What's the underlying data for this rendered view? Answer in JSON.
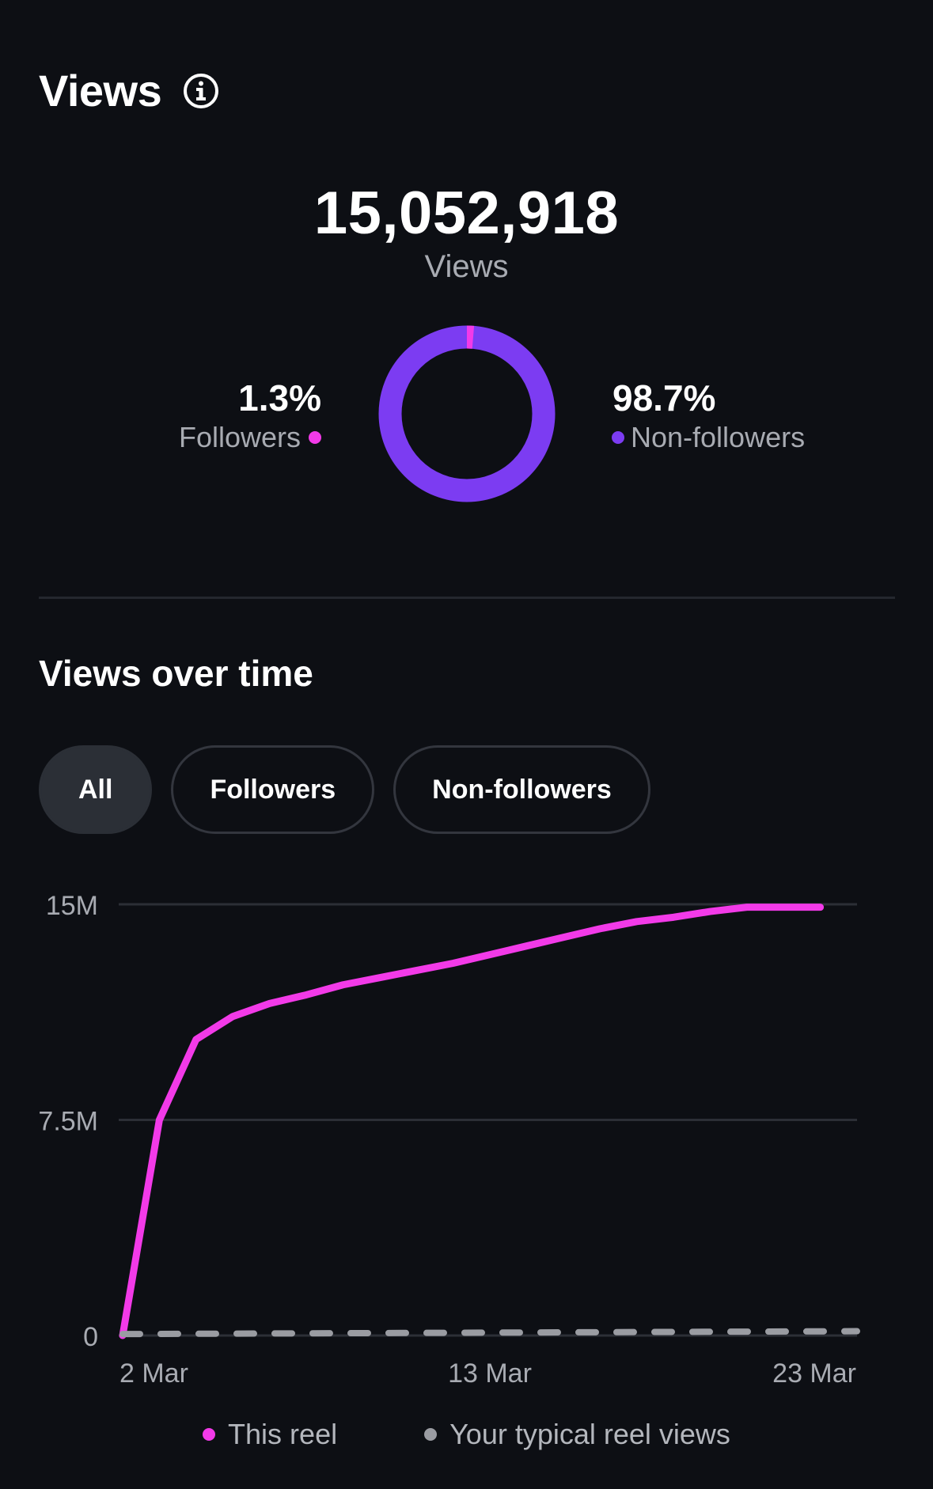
{
  "header": {
    "title": "Views",
    "info_icon": "info-icon"
  },
  "summary": {
    "total": "15,052,918",
    "total_label": "Views",
    "followers_pct": "1.3%",
    "followers_label": "Followers",
    "nonfollowers_pct": "98.7%",
    "nonfollowers_label": "Non-followers",
    "donut": {
      "followers_fraction": 0.013,
      "nonfollowers_fraction": 0.987
    }
  },
  "colors": {
    "followers": "#f23ae8",
    "nonfollowers": "#7c3cf2",
    "typical": "#9a9ca2",
    "background": "#0d0f14"
  },
  "section": {
    "title": "Views over time"
  },
  "filters": [
    {
      "label": "All",
      "active": true
    },
    {
      "label": "Followers",
      "active": false
    },
    {
      "label": "Non-followers",
      "active": false
    }
  ],
  "chart_data": {
    "type": "line",
    "y_tick_labels": [
      "15M",
      "7.5M",
      "0"
    ],
    "y_ticks": [
      15000000,
      7500000,
      0
    ],
    "ylim": [
      0,
      15000000
    ],
    "x_tick_labels": [
      "2 Mar",
      "13 Mar",
      "23 Mar"
    ],
    "x_ticks": [
      1,
      11,
      21
    ],
    "xlim": [
      1,
      21
    ],
    "series": [
      {
        "name": "This reel",
        "color": "#f23ae8",
        "x": [
          1,
          2,
          3,
          4,
          5,
          6,
          7,
          8,
          9,
          10,
          11,
          12,
          13,
          14,
          15,
          16,
          17,
          18,
          19,
          20
        ],
        "values": [
          0,
          7500000,
          10300000,
          11100000,
          11550000,
          11850000,
          12200000,
          12450000,
          12700000,
          12950000,
          13250000,
          13550000,
          13850000,
          14150000,
          14400000,
          14550000,
          14750000,
          14900000,
          14900000,
          14900000
        ]
      },
      {
        "name": "Your typical reel views",
        "color": "#9a9ca2",
        "dashed": true,
        "x": [
          1,
          21
        ],
        "values": [
          50000,
          150000
        ]
      }
    ],
    "grid": true,
    "legend_position": "bottom"
  }
}
